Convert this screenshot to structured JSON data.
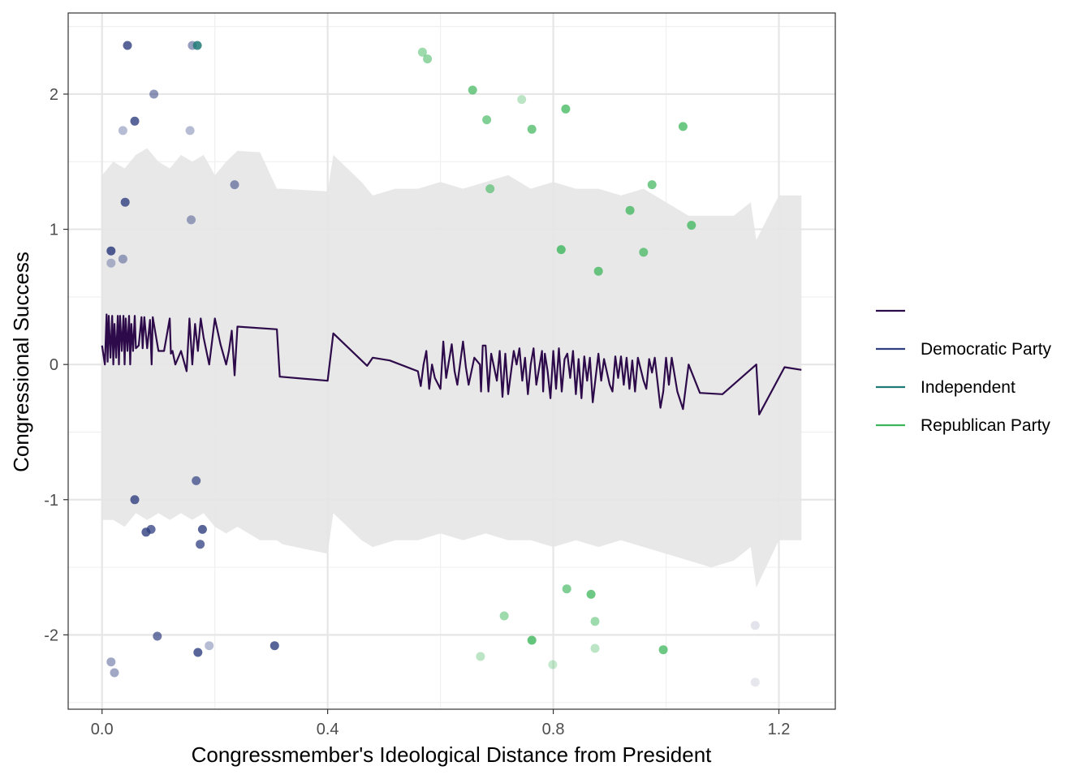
{
  "chart_data": {
    "type": "scatter",
    "xlabel": "Congressmember's Ideological Distance from President",
    "ylabel": "Congressional Success",
    "xlim": [
      -0.06,
      1.3
    ],
    "ylim": [
      -2.55,
      2.6
    ],
    "x_ticks": [
      0.0,
      0.4,
      0.8,
      1.2
    ],
    "x_tick_labels": [
      "0.0",
      "0.4",
      "0.8",
      "1.2"
    ],
    "y_ticks": [
      -2,
      -1,
      0,
      1,
      2
    ],
    "y_tick_labels": [
      "-2",
      "-1",
      "0",
      "1",
      "2"
    ],
    "grid": true,
    "legend_position": "right",
    "legend": [
      {
        "label": "",
        "color": "#2d0a4a"
      },
      {
        "label": "Democratic Party",
        "color": "#2f3f80"
      },
      {
        "label": "Independent",
        "color": "#1f7a78"
      },
      {
        "label": "Republican Party",
        "color": "#3cb55a"
      }
    ],
    "colors": {
      "line": "#2d0a4a",
      "band": "#e6e6e6",
      "democratic": "#2f3f80",
      "independent": "#1f7a78",
      "republican": "#3cb55a",
      "unaffiliated": "#c8c8d8",
      "panel_border": "#333333",
      "grid_major": "#e6e6e6",
      "grid_minor": "#f0f0f0"
    },
    "trend_line": {
      "x": [
        0.0,
        0.005,
        0.008,
        0.01,
        0.012,
        0.015,
        0.018,
        0.02,
        0.022,
        0.025,
        0.028,
        0.03,
        0.032,
        0.035,
        0.038,
        0.04,
        0.042,
        0.045,
        0.048,
        0.05,
        0.052,
        0.055,
        0.058,
        0.06,
        0.065,
        0.07,
        0.072,
        0.075,
        0.08,
        0.085,
        0.088,
        0.09,
        0.1,
        0.11,
        0.12,
        0.122,
        0.125,
        0.13,
        0.14,
        0.15,
        0.155,
        0.16,
        0.165,
        0.17,
        0.175,
        0.18,
        0.19,
        0.2,
        0.21,
        0.22,
        0.225,
        0.23,
        0.235,
        0.24,
        0.31,
        0.315,
        0.4,
        0.41,
        0.47,
        0.48,
        0.51,
        0.56,
        0.565,
        0.57,
        0.575,
        0.58,
        0.585,
        0.59,
        0.6,
        0.605,
        0.61,
        0.62,
        0.625,
        0.63,
        0.64,
        0.645,
        0.65,
        0.66,
        0.67,
        0.672,
        0.675,
        0.68,
        0.685,
        0.69,
        0.7,
        0.705,
        0.71,
        0.715,
        0.72,
        0.73,
        0.735,
        0.74,
        0.745,
        0.75,
        0.755,
        0.76,
        0.765,
        0.77,
        0.78,
        0.782,
        0.785,
        0.79,
        0.795,
        0.8,
        0.805,
        0.81,
        0.815,
        0.82,
        0.825,
        0.83,
        0.835,
        0.84,
        0.845,
        0.85,
        0.855,
        0.86,
        0.865,
        0.87,
        0.88,
        0.885,
        0.89,
        0.9,
        0.905,
        0.91,
        0.915,
        0.92,
        0.925,
        0.93,
        0.935,
        0.94,
        0.945,
        0.95,
        0.96,
        0.965,
        0.97,
        0.975,
        0.98,
        0.99,
        0.995,
        1.0,
        1.005,
        1.01,
        1.02,
        1.03,
        1.04,
        1.06,
        1.1,
        1.16,
        1.165,
        1.21,
        1.24
      ],
      "y": [
        0.14,
        0.0,
        0.37,
        0.02,
        0.36,
        0.05,
        0.36,
        0.0,
        0.3,
        0.05,
        0.36,
        0.0,
        0.36,
        0.1,
        0.36,
        0.0,
        0.34,
        0.1,
        0.36,
        0.0,
        0.3,
        0.1,
        0.36,
        0.12,
        0.14,
        0.35,
        0.12,
        0.35,
        0.12,
        0.33,
        0.0,
        0.35,
        0.1,
        0.1,
        0.34,
        0.08,
        0.1,
        0.0,
        0.1,
        -0.05,
        0.34,
        0.0,
        0.3,
        0.1,
        0.34,
        0.2,
        0.0,
        0.34,
        0.15,
        0.0,
        0.1,
        0.25,
        -0.08,
        0.28,
        0.26,
        -0.09,
        -0.12,
        0.23,
        -0.01,
        0.05,
        0.03,
        -0.05,
        -0.16,
        0.0,
        0.1,
        -0.18,
        0.0,
        -0.1,
        -0.18,
        0.17,
        -0.1,
        0.15,
        -0.05,
        -0.15,
        0.17,
        -0.02,
        -0.15,
        0.05,
        0.0,
        -0.2,
        0.14,
        0.14,
        -0.2,
        0.08,
        -0.12,
        0.1,
        -0.24,
        0.08,
        -0.22,
        0.1,
        0.0,
        0.12,
        -0.12,
        0.05,
        -0.22,
        0.0,
        0.12,
        -0.15,
        0.1,
        -0.2,
        0.08,
        -0.05,
        -0.25,
        0.1,
        -0.18,
        0.12,
        -0.2,
        0.04,
        0.08,
        -0.1,
        0.1,
        -0.22,
        0.04,
        -0.25,
        0.06,
        -0.12,
        0.05,
        -0.28,
        0.08,
        -0.12,
        0.04,
        -0.15,
        -0.2,
        0.06,
        -0.1,
        0.06,
        -0.15,
        0.05,
        -0.18,
        0.03,
        -0.2,
        0.05,
        -0.12,
        -0.18,
        0.04,
        -0.06,
        0.05,
        -0.32,
        -0.2,
        0.05,
        -0.15,
        0.05,
        -0.2,
        -0.33,
        0.0,
        -0.21,
        -0.22,
        0.0,
        -0.37,
        -0.02,
        -0.04
      ]
    },
    "confidence_band": {
      "x": [
        0.0,
        0.02,
        0.04,
        0.06,
        0.08,
        0.1,
        0.12,
        0.14,
        0.16,
        0.18,
        0.2,
        0.22,
        0.24,
        0.28,
        0.31,
        0.32,
        0.4,
        0.41,
        0.46,
        0.48,
        0.52,
        0.56,
        0.6,
        0.64,
        0.68,
        0.72,
        0.76,
        0.8,
        0.84,
        0.88,
        0.92,
        0.96,
        1.0,
        1.04,
        1.08,
        1.12,
        1.15,
        1.16,
        1.2,
        1.24
      ],
      "upper": [
        1.4,
        1.5,
        1.45,
        1.55,
        1.6,
        1.5,
        1.45,
        1.55,
        1.5,
        1.55,
        1.4,
        1.5,
        1.58,
        1.57,
        1.3,
        1.3,
        1.28,
        1.55,
        1.35,
        1.25,
        1.3,
        1.3,
        1.35,
        1.3,
        1.35,
        1.4,
        1.3,
        1.35,
        1.3,
        1.3,
        1.25,
        1.3,
        1.2,
        1.1,
        1.1,
        1.1,
        1.2,
        0.92,
        1.25,
        1.25
      ],
      "lower": [
        -1.15,
        -1.15,
        -1.2,
        -1.1,
        -1.15,
        -1.1,
        -1.15,
        -1.1,
        -1.15,
        -1.1,
        -1.2,
        -1.25,
        -1.2,
        -1.3,
        -1.3,
        -1.33,
        -1.4,
        -1.1,
        -1.3,
        -1.35,
        -1.3,
        -1.3,
        -1.25,
        -1.3,
        -1.25,
        -1.3,
        -1.3,
        -1.35,
        -1.3,
        -1.35,
        -1.3,
        -1.35,
        -1.4,
        -1.45,
        -1.5,
        -1.45,
        -1.35,
        -1.65,
        -1.3,
        -1.3
      ]
    },
    "series": [
      {
        "name": "Democratic Party",
        "points": [
          {
            "x": 0.045,
            "y": 2.36,
            "a": 0.8
          },
          {
            "x": 0.16,
            "y": 2.36,
            "a": 0.5
          },
          {
            "x": 0.092,
            "y": 2.0,
            "a": 0.55
          },
          {
            "x": 0.058,
            "y": 1.8,
            "a": 0.8
          },
          {
            "x": 0.037,
            "y": 1.73,
            "a": 0.35
          },
          {
            "x": 0.156,
            "y": 1.73,
            "a": 0.35
          },
          {
            "x": 0.235,
            "y": 1.33,
            "a": 0.55
          },
          {
            "x": 0.041,
            "y": 1.2,
            "a": 0.8
          },
          {
            "x": 0.158,
            "y": 1.07,
            "a": 0.45
          },
          {
            "x": 0.016,
            "y": 0.84,
            "a": 0.85
          },
          {
            "x": 0.037,
            "y": 0.78,
            "a": 0.45
          },
          {
            "x": 0.016,
            "y": 0.75,
            "a": 0.35
          },
          {
            "x": 0.167,
            "y": -0.86,
            "a": 0.7
          },
          {
            "x": 0.058,
            "y": -1.0,
            "a": 0.8
          },
          {
            "x": 0.087,
            "y": -1.22,
            "a": 0.75
          },
          {
            "x": 0.078,
            "y": -1.24,
            "a": 0.8
          },
          {
            "x": 0.178,
            "y": -1.22,
            "a": 0.8
          },
          {
            "x": 0.174,
            "y": -1.33,
            "a": 0.75
          },
          {
            "x": 0.098,
            "y": -2.01,
            "a": 0.7
          },
          {
            "x": 0.306,
            "y": -2.08,
            "a": 0.8
          },
          {
            "x": 0.19,
            "y": -2.08,
            "a": 0.35
          },
          {
            "x": 0.17,
            "y": -2.13,
            "a": 0.8
          },
          {
            "x": 0.016,
            "y": -2.2,
            "a": 0.45
          },
          {
            "x": 0.022,
            "y": -2.28,
            "a": 0.45
          }
        ]
      },
      {
        "name": "Independent",
        "points": [
          {
            "x": 0.169,
            "y": 2.36,
            "a": 0.85
          }
        ]
      },
      {
        "name": "Republican Party",
        "points": [
          {
            "x": 0.568,
            "y": 2.31,
            "a": 0.5
          },
          {
            "x": 0.577,
            "y": 2.26,
            "a": 0.55
          },
          {
            "x": 0.657,
            "y": 2.03,
            "a": 0.7
          },
          {
            "x": 0.744,
            "y": 1.96,
            "a": 0.35
          },
          {
            "x": 0.822,
            "y": 1.89,
            "a": 0.75
          },
          {
            "x": 0.682,
            "y": 1.81,
            "a": 0.65
          },
          {
            "x": 0.762,
            "y": 1.74,
            "a": 0.7
          },
          {
            "x": 1.03,
            "y": 1.76,
            "a": 0.75
          },
          {
            "x": 0.688,
            "y": 1.3,
            "a": 0.6
          },
          {
            "x": 0.975,
            "y": 1.33,
            "a": 0.7
          },
          {
            "x": 0.936,
            "y": 1.14,
            "a": 0.75
          },
          {
            "x": 1.045,
            "y": 1.03,
            "a": 0.75
          },
          {
            "x": 0.814,
            "y": 0.85,
            "a": 0.8
          },
          {
            "x": 0.96,
            "y": 0.83,
            "a": 0.7
          },
          {
            "x": 0.88,
            "y": 0.69,
            "a": 0.75
          },
          {
            "x": 0.824,
            "y": -1.66,
            "a": 0.65
          },
          {
            "x": 0.867,
            "y": -1.7,
            "a": 0.75
          },
          {
            "x": 0.713,
            "y": -1.86,
            "a": 0.5
          },
          {
            "x": 0.874,
            "y": -1.9,
            "a": 0.5
          },
          {
            "x": 0.762,
            "y": -2.04,
            "a": 0.8
          },
          {
            "x": 0.874,
            "y": -2.1,
            "a": 0.35
          },
          {
            "x": 0.995,
            "y": -2.11,
            "a": 0.75
          },
          {
            "x": 0.671,
            "y": -2.16,
            "a": 0.35
          },
          {
            "x": 0.799,
            "y": -2.22,
            "a": 0.3
          }
        ]
      },
      {
        "points": [
          {
            "x": 1.158,
            "y": -1.93,
            "a": 0.5
          },
          {
            "x": 1.158,
            "y": -2.35,
            "a": 0.45
          }
        ]
      }
    ]
  }
}
